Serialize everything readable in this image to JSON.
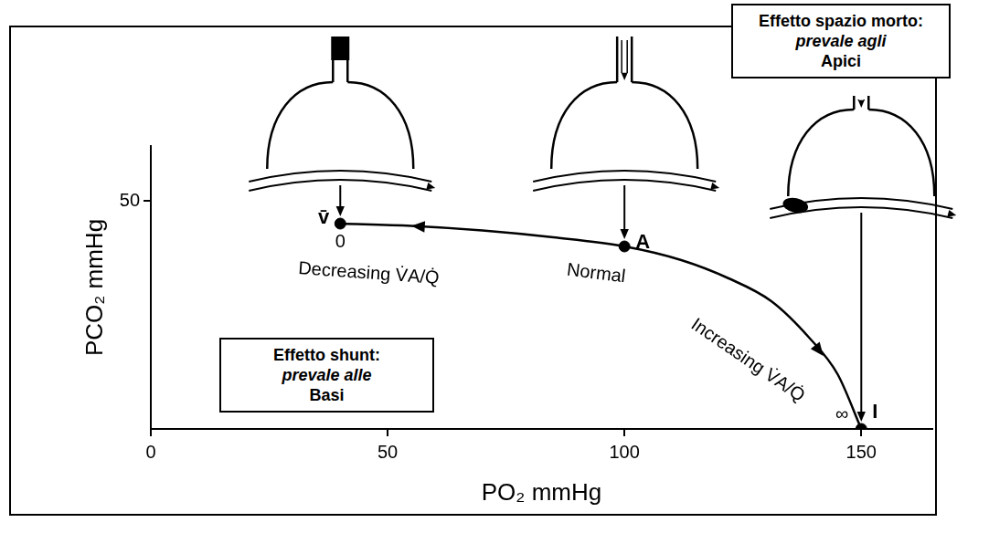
{
  "chart_data": {
    "type": "line",
    "x_label": "PO₂ mmHg",
    "y_label": "PCO₂ mmHg",
    "x": [
      40,
      55,
      70,
      85,
      100,
      112,
      122,
      131,
      139,
      145,
      150
    ],
    "values": [
      45,
      44.5,
      43.5,
      42,
      40,
      37,
      33,
      28,
      20,
      12,
      0
    ],
    "color": "#000000",
    "xlim": [
      0,
      165
    ],
    "xticks": [
      0,
      50,
      100,
      150
    ],
    "ylim": [
      0,
      62
    ],
    "yticks": [
      50
    ],
    "grid": false,
    "points": [
      {
        "name": "v̄",
        "x": 40,
        "y": 45,
        "ratio": "0"
      },
      {
        "name": "A",
        "x": 100,
        "y": 40
      },
      {
        "name": "I",
        "x": 150,
        "y": 0,
        "ratio": "∞"
      }
    ],
    "curve_labels": [
      "Decreasing V̇A/Q̇",
      "Normal",
      "Increasing V̇A/Q̇"
    ],
    "notes": [
      {
        "parts": [
          "Effetto shunt:",
          "prevale alle",
          "Basi"
        ]
      },
      {
        "parts": [
          "Effetto spazio morto:",
          "prevale agli",
          "Apici"
        ]
      }
    ]
  }
}
